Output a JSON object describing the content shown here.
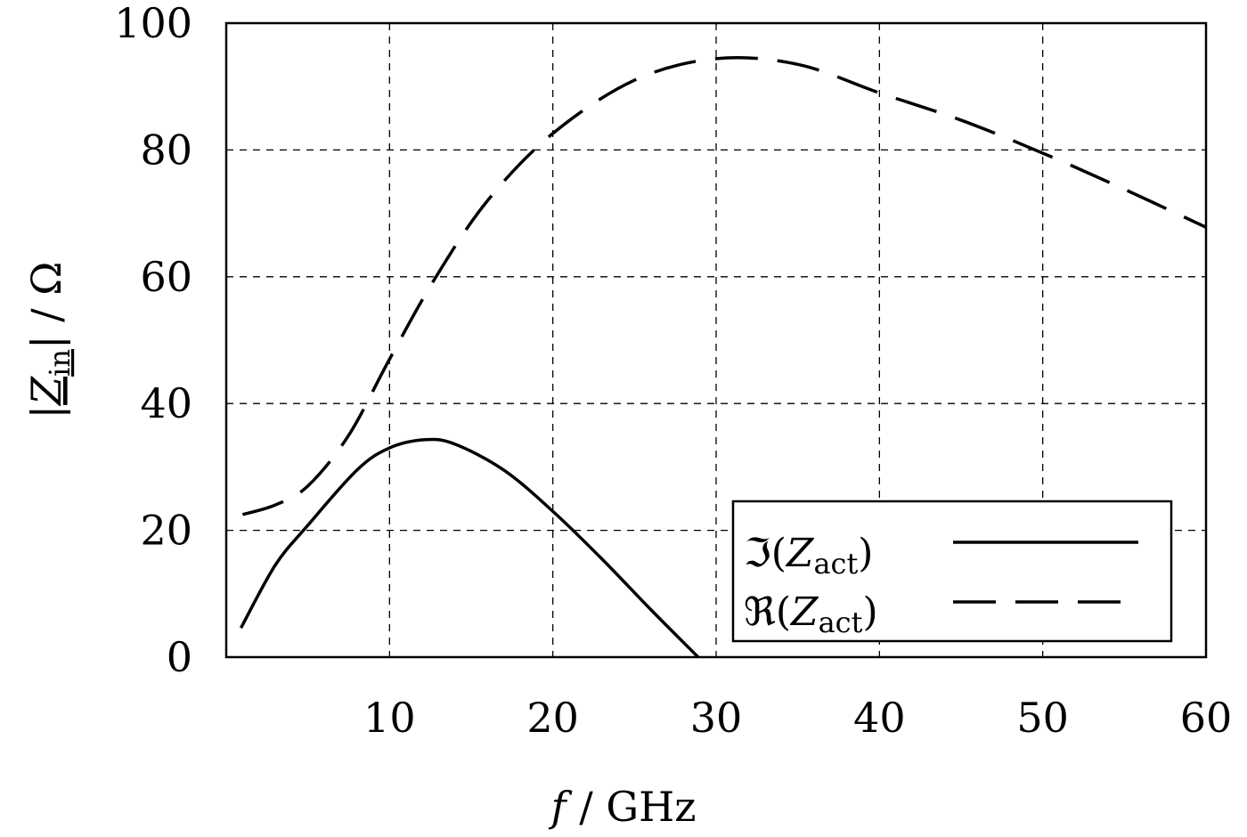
{
  "chart_data": {
    "type": "line",
    "xlabel_italic": "f",
    "xlabel_unit": " / GHz",
    "ylabel": {
      "left_bar": "|",
      "symbol": "Z",
      "subscript": "in",
      "right_bar": "|",
      "unit": " / Ω"
    },
    "xlim": [
      0,
      60
    ],
    "ylim": [
      0,
      100
    ],
    "xticks": [
      10,
      20,
      30,
      40,
      50,
      60
    ],
    "yticks": [
      0,
      20,
      40,
      60,
      80,
      100
    ],
    "grid": true,
    "legend_placement": "bottom-right",
    "series": [
      {
        "name": "ℑ(Z_act)",
        "legend": {
          "op": "ℑ",
          "symbol": "Z",
          "subscript": "act"
        },
        "style": "solid",
        "color": "#000000",
        "x": [
          0.9,
          3,
          5,
          8,
          10,
          12.2,
          14,
          17,
          20,
          23,
          26,
          28.9
        ],
        "y": [
          4.6,
          14.5,
          20.8,
          29.5,
          33,
          34.3,
          33.6,
          29.5,
          23,
          15.5,
          7.5,
          0
        ]
      },
      {
        "name": "ℜ(Z_act)",
        "legend": {
          "op": "ℜ",
          "symbol": "Z",
          "subscript": "act"
        },
        "style": "dashed",
        "color": "#000000",
        "x": [
          1,
          3,
          5,
          7.5,
          10,
          12.8,
          16,
          20,
          25,
          30,
          35,
          40,
          45,
          50,
          55,
          60
        ],
        "y": [
          22.5,
          24,
          27,
          35,
          47,
          59.8,
          72,
          82.6,
          91,
          94.4,
          93.5,
          89,
          84.7,
          79.5,
          73.8,
          67.8
        ]
      }
    ]
  }
}
